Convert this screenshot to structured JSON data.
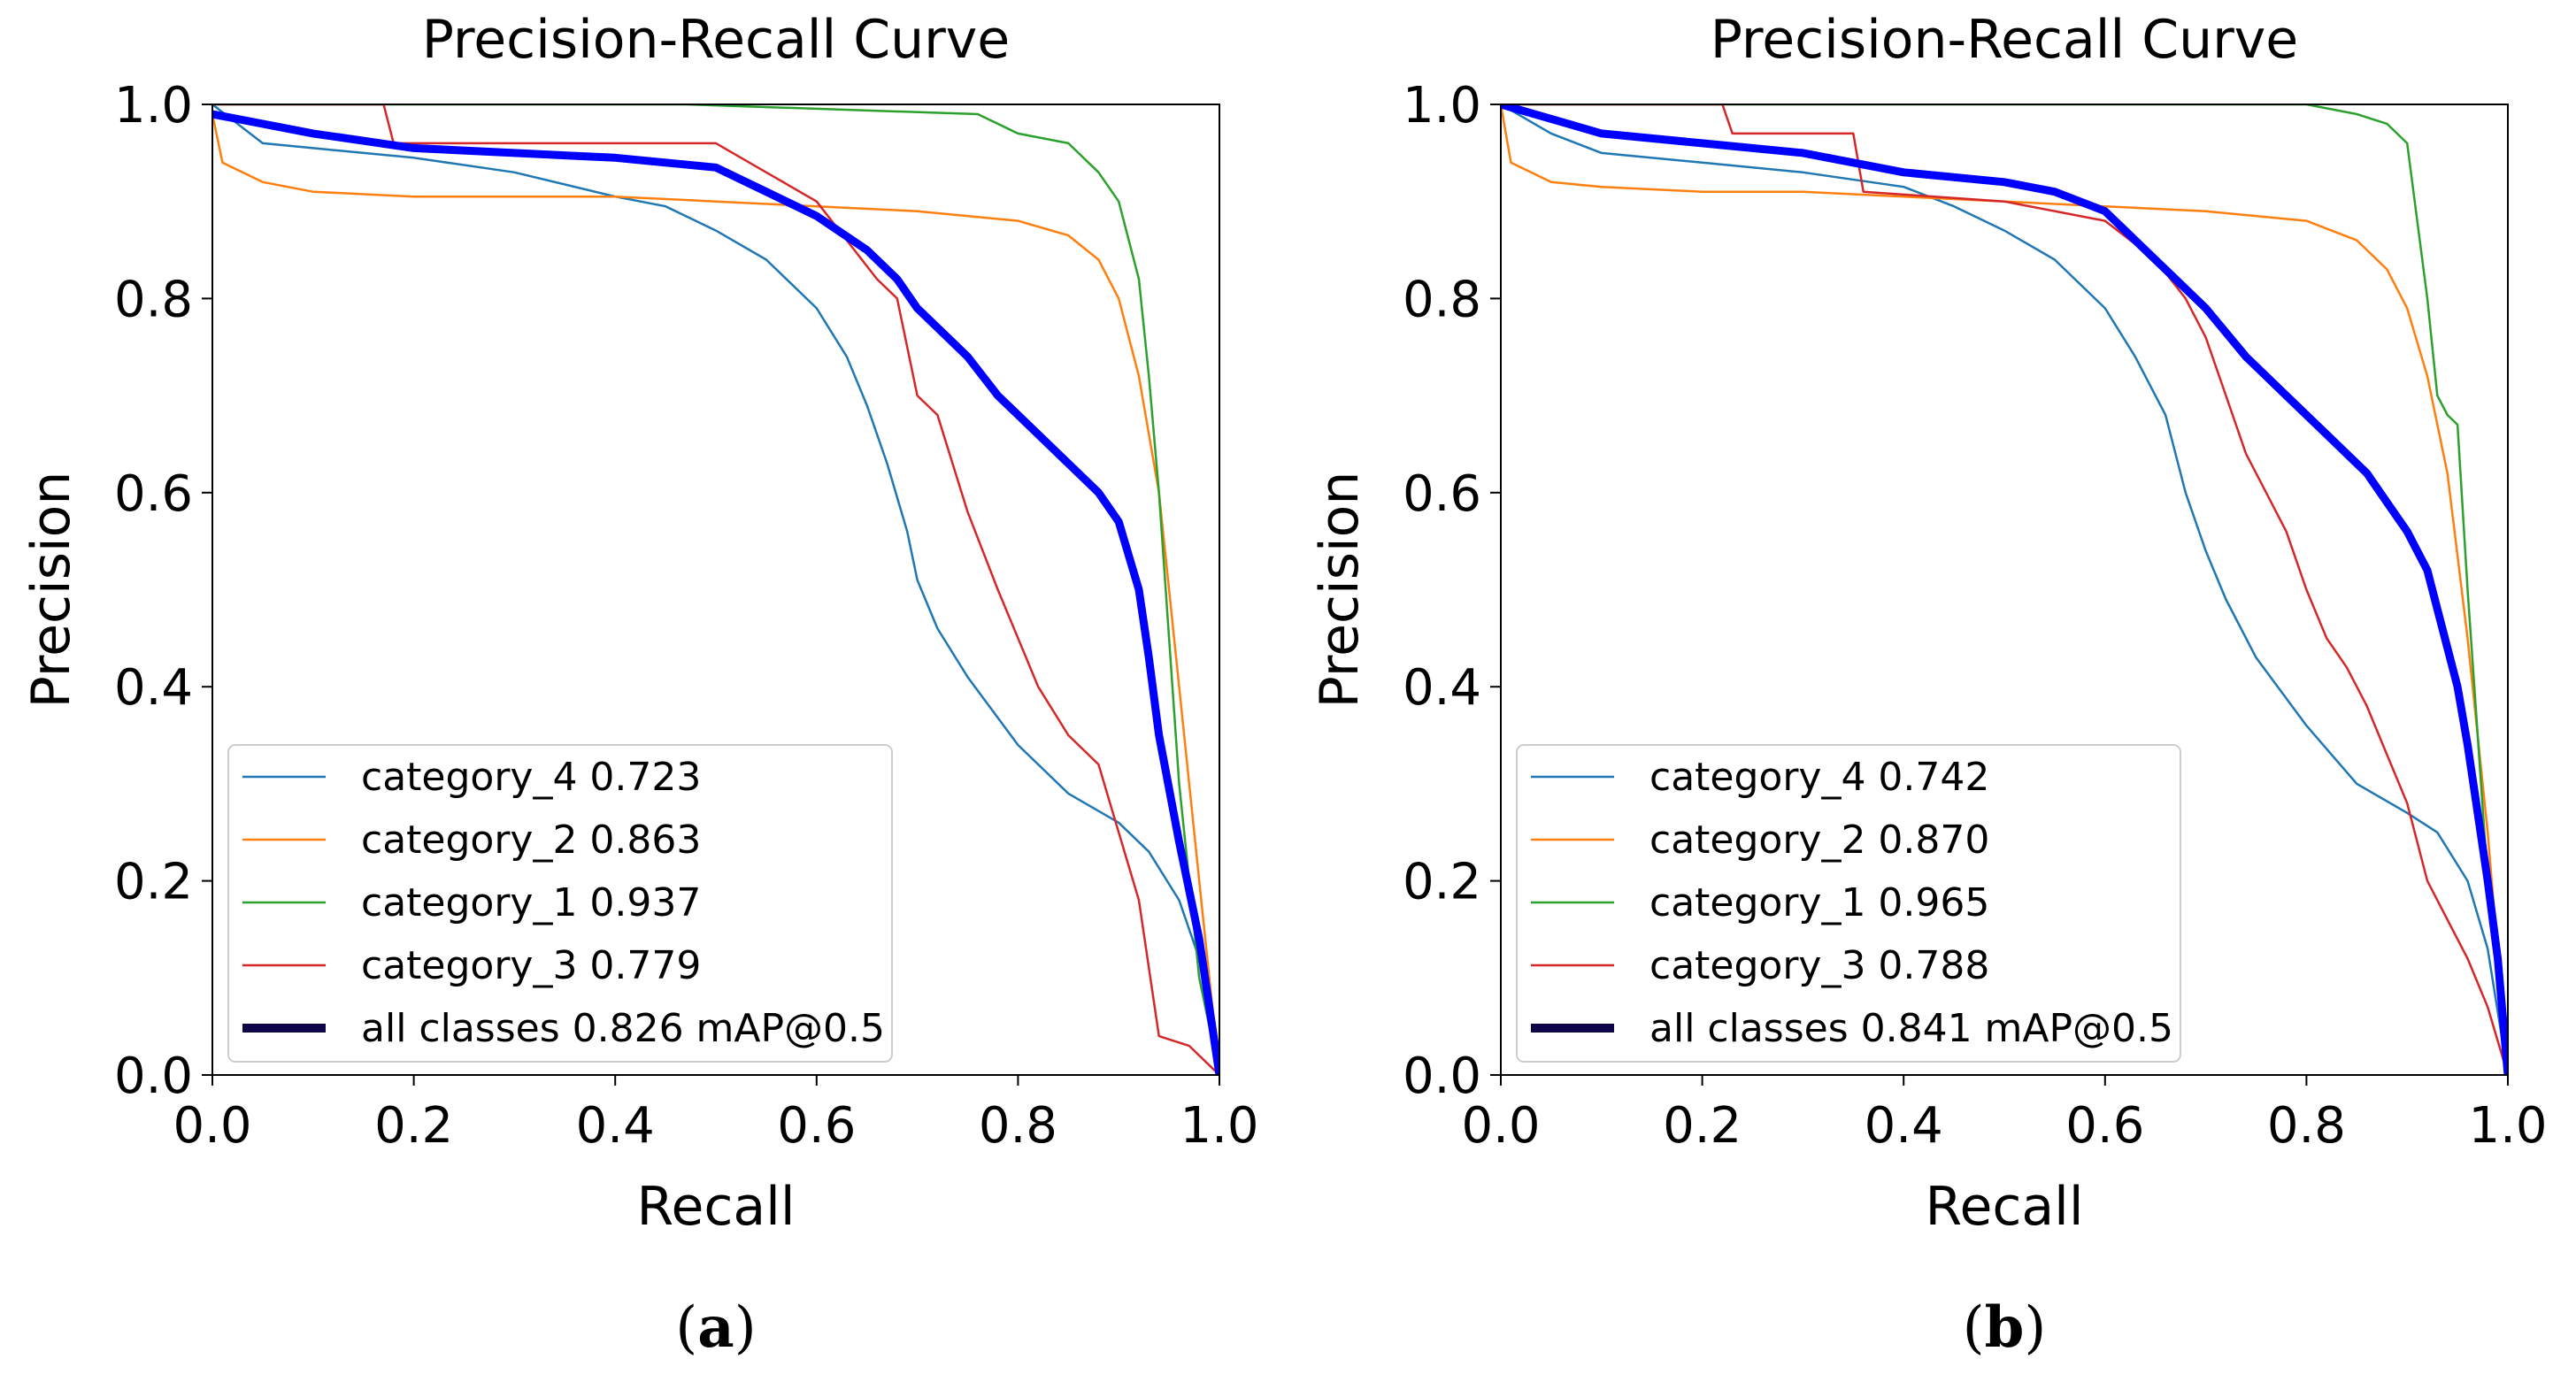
{
  "chart_data": [
    {
      "type": "line",
      "panel_label": "(a)",
      "caption_letter": "a",
      "title": "Precision-Recall Curve",
      "xlabel": "Recall",
      "ylabel": "Precision",
      "xlim": [
        0,
        1
      ],
      "ylim": [
        0,
        1
      ],
      "xticks": [
        "0.0",
        "0.2",
        "0.4",
        "0.6",
        "0.8",
        "1.0"
      ],
      "yticks": [
        "0.0",
        "0.2",
        "0.4",
        "0.6",
        "0.8",
        "1.0"
      ],
      "legend_position": "lower-left",
      "series": [
        {
          "name": "category_4",
          "label": "category_4 0.723",
          "ap": 0.723,
          "color": "#1f77b4",
          "x": [
            0,
            0.05,
            0.1,
            0.2,
            0.3,
            0.4,
            0.45,
            0.5,
            0.55,
            0.6,
            0.63,
            0.65,
            0.67,
            0.69,
            0.7,
            0.72,
            0.75,
            0.8,
            0.85,
            0.9,
            0.93,
            0.96,
            0.98,
            1.0
          ],
          "y": [
            1.0,
            0.96,
            0.955,
            0.945,
            0.93,
            0.905,
            0.895,
            0.87,
            0.84,
            0.79,
            0.74,
            0.69,
            0.63,
            0.56,
            0.51,
            0.46,
            0.41,
            0.34,
            0.29,
            0.26,
            0.23,
            0.18,
            0.12,
            0.0
          ]
        },
        {
          "name": "category_2",
          "label": "category_2 0.863",
          "ap": 0.863,
          "color": "#ff7f0e",
          "x": [
            0,
            0.01,
            0.05,
            0.1,
            0.2,
            0.3,
            0.4,
            0.5,
            0.6,
            0.7,
            0.8,
            0.85,
            0.88,
            0.9,
            0.92,
            0.94,
            0.96,
            0.98,
            1.0
          ],
          "y": [
            0.99,
            0.94,
            0.92,
            0.91,
            0.905,
            0.905,
            0.905,
            0.9,
            0.895,
            0.89,
            0.88,
            0.865,
            0.84,
            0.8,
            0.72,
            0.6,
            0.4,
            0.2,
            0.0
          ]
        },
        {
          "name": "category_1",
          "label": "category_1 0.937",
          "ap": 0.937,
          "color": "#2ca02c",
          "x": [
            0,
            0.47,
            0.76,
            0.8,
            0.85,
            0.88,
            0.9,
            0.92,
            0.93,
            0.94,
            0.95,
            0.96,
            0.97,
            0.98,
            1.0
          ],
          "y": [
            1.0,
            1.0,
            0.99,
            0.97,
            0.96,
            0.93,
            0.9,
            0.82,
            0.72,
            0.6,
            0.45,
            0.3,
            0.2,
            0.1,
            0.0
          ]
        },
        {
          "name": "category_3",
          "label": "category_3 0.779",
          "ap": 0.779,
          "color": "#d62728",
          "x": [
            0,
            0.17,
            0.18,
            0.5,
            0.55,
            0.6,
            0.63,
            0.66,
            0.68,
            0.7,
            0.72,
            0.75,
            0.78,
            0.8,
            0.82,
            0.85,
            0.88,
            0.9,
            0.92,
            0.94,
            0.97,
            1.0
          ],
          "y": [
            1.0,
            1.0,
            0.96,
            0.96,
            0.93,
            0.9,
            0.86,
            0.82,
            0.8,
            0.7,
            0.68,
            0.58,
            0.5,
            0.45,
            0.4,
            0.35,
            0.32,
            0.25,
            0.18,
            0.04,
            0.03,
            0.0
          ]
        },
        {
          "name": "all classes",
          "label": "all classes 0.826 mAP@0.5",
          "ap": 0.826,
          "color": "#0000ff",
          "x": [
            0,
            0.1,
            0.2,
            0.3,
            0.4,
            0.5,
            0.55,
            0.6,
            0.65,
            0.68,
            0.7,
            0.75,
            0.78,
            0.82,
            0.86,
            0.88,
            0.9,
            0.92,
            0.93,
            0.94,
            0.96,
            0.98,
            1.0
          ],
          "y": [
            0.99,
            0.97,
            0.955,
            0.95,
            0.945,
            0.935,
            0.91,
            0.885,
            0.85,
            0.82,
            0.79,
            0.74,
            0.7,
            0.66,
            0.62,
            0.6,
            0.57,
            0.5,
            0.43,
            0.35,
            0.24,
            0.14,
            0.0
          ]
        }
      ]
    },
    {
      "type": "line",
      "panel_label": "(b)",
      "caption_letter": "b",
      "title": "Precision-Recall Curve",
      "xlabel": "Recall",
      "ylabel": "Precision",
      "xlim": [
        0,
        1
      ],
      "ylim": [
        0,
        1
      ],
      "xticks": [
        "0.0",
        "0.2",
        "0.4",
        "0.6",
        "0.8",
        "1.0"
      ],
      "yticks": [
        "0.0",
        "0.2",
        "0.4",
        "0.6",
        "0.8",
        "1.0"
      ],
      "legend_position": "lower-left",
      "series": [
        {
          "name": "category_4",
          "label": "category_4 0.742",
          "ap": 0.742,
          "color": "#1f77b4",
          "x": [
            0,
            0.05,
            0.1,
            0.2,
            0.3,
            0.4,
            0.45,
            0.5,
            0.55,
            0.6,
            0.63,
            0.66,
            0.68,
            0.7,
            0.72,
            0.75,
            0.8,
            0.85,
            0.9,
            0.93,
            0.96,
            0.98,
            1.0
          ],
          "y": [
            1.0,
            0.97,
            0.95,
            0.94,
            0.93,
            0.915,
            0.895,
            0.87,
            0.84,
            0.79,
            0.74,
            0.68,
            0.6,
            0.54,
            0.49,
            0.43,
            0.36,
            0.3,
            0.27,
            0.25,
            0.2,
            0.13,
            0.0
          ]
        },
        {
          "name": "category_2",
          "label": "category_2 0.870",
          "ap": 0.87,
          "color": "#ff7f0e",
          "x": [
            0,
            0.01,
            0.05,
            0.1,
            0.2,
            0.3,
            0.4,
            0.5,
            0.6,
            0.7,
            0.8,
            0.85,
            0.88,
            0.9,
            0.92,
            0.94,
            0.96,
            0.98,
            1.0
          ],
          "y": [
            1.0,
            0.94,
            0.92,
            0.915,
            0.91,
            0.91,
            0.905,
            0.9,
            0.895,
            0.89,
            0.88,
            0.86,
            0.83,
            0.79,
            0.72,
            0.62,
            0.45,
            0.25,
            0.0
          ]
        },
        {
          "name": "category_1",
          "label": "category_1 0.965",
          "ap": 0.965,
          "color": "#2ca02c",
          "x": [
            0,
            0.8,
            0.85,
            0.88,
            0.9,
            0.92,
            0.93,
            0.94,
            0.95,
            0.96,
            0.97,
            0.98,
            1.0
          ],
          "y": [
            1.0,
            1.0,
            0.99,
            0.98,
            0.96,
            0.8,
            0.7,
            0.68,
            0.67,
            0.5,
            0.35,
            0.2,
            0.0
          ]
        },
        {
          "name": "category_3",
          "label": "category_3 0.788",
          "ap": 0.788,
          "color": "#d62728",
          "x": [
            0,
            0.22,
            0.23,
            0.35,
            0.36,
            0.5,
            0.6,
            0.65,
            0.68,
            0.7,
            0.72,
            0.74,
            0.76,
            0.78,
            0.8,
            0.82,
            0.84,
            0.86,
            0.88,
            0.9,
            0.92,
            0.94,
            0.96,
            0.98,
            1.0
          ],
          "y": [
            1.0,
            1.0,
            0.97,
            0.97,
            0.91,
            0.9,
            0.88,
            0.84,
            0.8,
            0.76,
            0.7,
            0.64,
            0.6,
            0.56,
            0.5,
            0.45,
            0.42,
            0.38,
            0.33,
            0.28,
            0.2,
            0.16,
            0.12,
            0.07,
            0.0
          ]
        },
        {
          "name": "all classes",
          "label": "all classes 0.841 mAP@0.5",
          "ap": 0.841,
          "color": "#0000ff",
          "x": [
            0,
            0.1,
            0.2,
            0.3,
            0.4,
            0.5,
            0.55,
            0.6,
            0.63,
            0.66,
            0.7,
            0.74,
            0.78,
            0.82,
            0.86,
            0.88,
            0.9,
            0.92,
            0.93,
            0.94,
            0.95,
            0.96,
            0.97,
            0.98,
            0.99,
            1.0
          ],
          "y": [
            1.0,
            0.97,
            0.96,
            0.95,
            0.93,
            0.92,
            0.91,
            0.89,
            0.86,
            0.83,
            0.79,
            0.74,
            0.7,
            0.66,
            0.62,
            0.59,
            0.56,
            0.52,
            0.48,
            0.44,
            0.4,
            0.34,
            0.27,
            0.2,
            0.12,
            0.0
          ]
        }
      ]
    }
  ]
}
